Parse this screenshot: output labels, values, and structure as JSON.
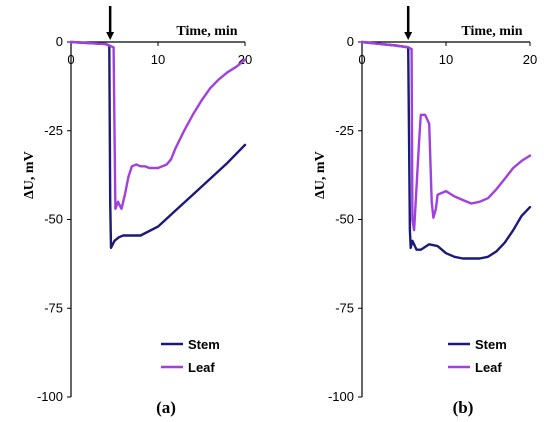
{
  "chart_data": [
    {
      "type": "line",
      "panel_label": "(a)",
      "xlabel": "Time, min",
      "ylabel": "ΔU, mV",
      "xlim": [
        0,
        20
      ],
      "ylim": [
        -100,
        0
      ],
      "x_ticks": [
        "0",
        "10",
        "20"
      ],
      "y_ticks": [
        "0",
        "-25",
        "-50",
        "-75",
        "-100"
      ],
      "grid": false,
      "legend_position": "bottom-right",
      "arrow_at_x": 4.5,
      "series": [
        {
          "name": "Stem",
          "color": "#1a1a7a",
          "x": [
            0,
            2,
            4,
            4.4,
            4.5,
            4.6,
            4.7,
            5.0,
            5.5,
            6.0,
            7.0,
            8.0,
            10.0,
            12.0,
            14.0,
            16.0,
            18.0,
            20.0
          ],
          "y": [
            0,
            -0.3,
            -0.6,
            -1.0,
            -45,
            -58,
            -57.5,
            -56,
            -55,
            -54.5,
            -54.5,
            -54.5,
            -52,
            -47.5,
            -43,
            -38.5,
            -34,
            -29
          ]
        },
        {
          "name": "Leaf",
          "color": "#a040e0",
          "x": [
            0,
            2,
            4,
            4.9,
            5.0,
            5.1,
            5.4,
            5.8,
            6.2,
            6.6,
            7.0,
            7.5,
            8.0,
            8.5,
            9.0,
            10.0,
            11.0,
            11.5,
            12.0,
            13.0,
            14.0,
            15.0,
            16.0,
            17.0,
            18.0,
            19.0,
            20.0
          ],
          "y": [
            0,
            -0.3,
            -0.6,
            -1.5,
            -25,
            -47,
            -45,
            -47,
            -43,
            -38,
            -35,
            -34.5,
            -35,
            -35,
            -35.5,
            -35.5,
            -34.5,
            -33,
            -30,
            -25,
            -20.5,
            -16.5,
            -13,
            -10.5,
            -8.5,
            -7,
            -5
          ]
        }
      ]
    },
    {
      "type": "line",
      "panel_label": "(b)",
      "xlabel": "Time, min",
      "ylabel": "ΔU, mV",
      "xlim": [
        0,
        20
      ],
      "ylim": [
        -100,
        0
      ],
      "x_ticks": [
        "0",
        "10",
        "20"
      ],
      "y_ticks": [
        "0",
        "-25",
        "-50",
        "-75",
        "-100"
      ],
      "grid": false,
      "legend_position": "bottom-right",
      "arrow_at_x": 5.5,
      "series": [
        {
          "name": "Stem",
          "color": "#1a1a7a",
          "x": [
            0,
            2,
            4,
            5.5,
            5.7,
            5.8,
            6.0,
            6.5,
            7.0,
            8.0,
            9.0,
            10.0,
            11.0,
            12.0,
            13.0,
            14.0,
            15.0,
            16.0,
            17.0,
            18.0,
            19.0,
            20.0
          ],
          "y": [
            0,
            -0.5,
            -1.0,
            -1.5,
            -53,
            -58,
            -56,
            -58.5,
            -58.5,
            -57,
            -57.5,
            -59.5,
            -60.5,
            -61,
            -61,
            -61,
            -60.5,
            -59,
            -56.5,
            -53,
            -49,
            -46.5
          ]
        },
        {
          "name": "Leaf",
          "color": "#a040e0",
          "x": [
            0,
            2,
            4,
            5.5,
            5.9,
            6.0,
            6.2,
            6.8,
            7.0,
            7.5,
            8.0,
            8.3,
            8.5,
            8.8,
            9.0,
            10.0,
            11.0,
            12.0,
            13.0,
            14.0,
            15.0,
            16.0,
            17.0,
            18.0,
            19.0,
            20.0
          ],
          "y": [
            0,
            -0.5,
            -1.0,
            -1.5,
            -2.0,
            -50,
            -53,
            -28,
            -20.5,
            -20.5,
            -23,
            -45,
            -49.5,
            -47,
            -43,
            -42,
            -43.5,
            -44.5,
            -45.5,
            -45,
            -44,
            -41.5,
            -38.5,
            -35.5,
            -33.5,
            -32
          ]
        }
      ]
    }
  ]
}
